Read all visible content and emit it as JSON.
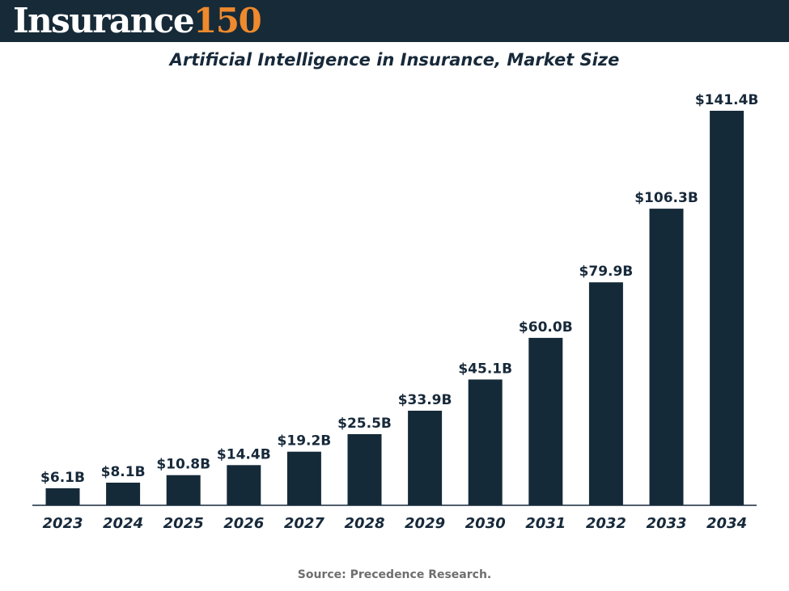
{
  "brand": {
    "logo_word": "Insurance",
    "logo_number": "150"
  },
  "colors": {
    "header_bg": "#172a38",
    "bar": "#152a38",
    "accent": "#ee8a2d",
    "text": "#17293a",
    "source": "#6e6e6e"
  },
  "chart_data": {
    "type": "bar",
    "title": "Artificial Intelligence in Insurance, Market Size",
    "xlabel": "",
    "ylabel": "",
    "categories": [
      "2023",
      "2024",
      "2025",
      "2026",
      "2027",
      "2028",
      "2029",
      "2030",
      "2031",
      "2032",
      "2033",
      "2034"
    ],
    "values": [
      6.1,
      8.1,
      10.8,
      14.4,
      19.2,
      25.5,
      33.9,
      45.1,
      60.0,
      79.9,
      106.3,
      141.4
    ],
    "data_labels": [
      "$6.1B",
      "$8.1B",
      "$10.8B",
      "$14.4B",
      "$19.2B",
      "$25.5B",
      "$33.9B",
      "$45.1B",
      "$60.0B",
      "$79.9B",
      "$106.3B",
      "$141.4B"
    ],
    "unit": "USD billions",
    "ylim": [
      0,
      141.4
    ],
    "grid": false,
    "legend": "none"
  },
  "source": "Source: Precedence Research."
}
